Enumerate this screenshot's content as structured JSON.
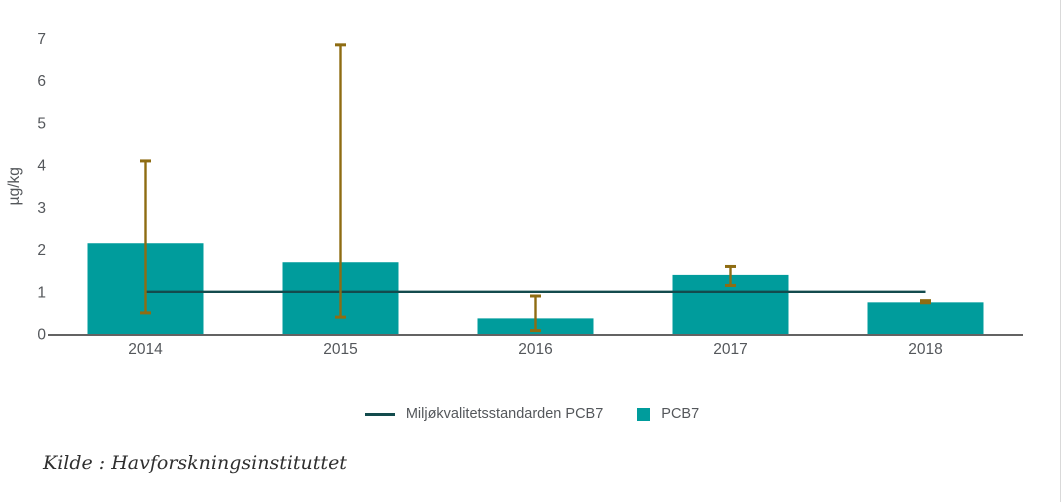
{
  "chart_data": {
    "type": "bar",
    "title": "",
    "xlabel": "",
    "ylabel": "µg/kg",
    "ylim": [
      0,
      7
    ],
    "yticks": [
      0,
      1,
      2,
      3,
      4,
      5,
      6,
      7
    ],
    "categories": [
      "2014",
      "2015",
      "2016",
      "2017",
      "2018"
    ],
    "series": [
      {
        "name": "Miljøkvalitetsstandarden PCB7",
        "type": "line",
        "color": "#134b4d",
        "values": [
          1,
          1,
          1,
          1,
          1
        ]
      },
      {
        "name": "PCB7",
        "type": "bar",
        "color": "#009c9c",
        "values": [
          2.15,
          1.7,
          0.37,
          1.4,
          0.75
        ],
        "error_low": [
          0.5,
          0.4,
          0.08,
          1.15,
          0.74
        ],
        "error_high": [
          4.1,
          6.85,
          0.9,
          1.6,
          0.79
        ],
        "error_color": "#8e6c12"
      }
    ],
    "grid": false,
    "legend_position": "bottom",
    "axis_color": "#4d4d4d",
    "tick_label_color": "#54575b"
  },
  "legend": {
    "line_item_label": "Miljøkvalitetsstandarden PCB7",
    "bar_item_label": "PCB7"
  },
  "source": {
    "text": "Kilde : Havforskningsinstituttet"
  }
}
